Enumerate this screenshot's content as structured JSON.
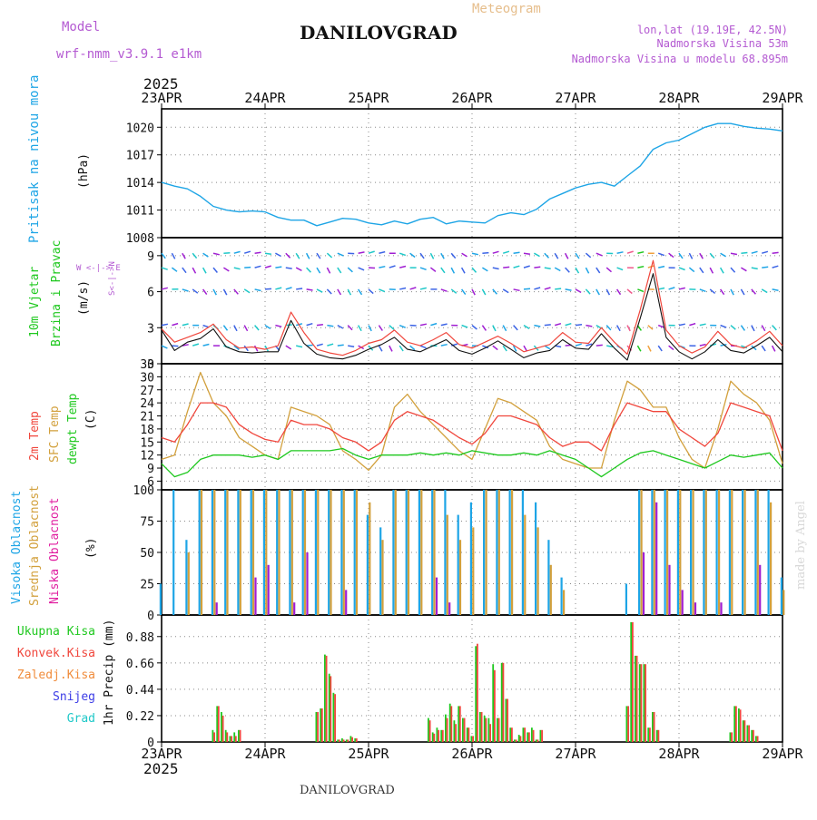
{
  "header": {
    "model_label": "Model",
    "model_name": "wrf-nmm_v3.9.1 e1km",
    "title": "DANILOVGRAD",
    "subtitle": "Meteogram",
    "coords": "lon,lat (19.19E, 42.5N)",
    "elevation": "Nadmorska Visina 53m",
    "model_elevation": "Nadmorska Visina u modelu 68.895m",
    "year_top": "2025",
    "year_bottom": "2025",
    "footer_label": "DANILOVGRAD",
    "credit": "made by Angel"
  },
  "colors": {
    "pressure": "#1ea5e6",
    "temp2m": "#f0463c",
    "sfc_temp": "#d2a03c",
    "dewpt": "#1ec81e",
    "high_cloud": "#1ea5e6",
    "mid_cloud": "#d2a03c",
    "low_cloud": "#a01ed2",
    "total_precip": "#1ec81e",
    "conv_precip": "#f0463c",
    "grid_precip": "#f08c3c",
    "snow": "#3c3ce6",
    "graupel": "#1ec8c8",
    "model_label": "#b45ad2",
    "subtitle": "#e6be8c"
  },
  "x_axis": {
    "days": [
      "23APR",
      "24APR",
      "25APR",
      "26APR",
      "27APR",
      "28APR",
      "29APR"
    ]
  },
  "legends": {
    "pressure_label": "Pritisak na nivou mora",
    "pressure_unit": "(hPa)",
    "wind_label_1": "10m Vjetar",
    "wind_label_2": "Brzina i Pravac",
    "wind_unit": "(m/s)",
    "compass": "W <-|-> E",
    "compass_v": "S<-|->N",
    "temp_2m": "2m Temp",
    "temp_sfc": "SFC Temp",
    "temp_dew": "dewpt Temp",
    "temp_unit": "(C)",
    "cloud_high": "Visoka Oblacnost",
    "cloud_mid": "Srednja Oblacnost",
    "cloud_low": "Niska Oblacnost",
    "cloud_unit": "(%)",
    "precip_total": "Ukupna Kisa",
    "precip_conv": "Konvek.Kisa",
    "precip_grid": "Zaledj.Kisa",
    "precip_snow": "Snijeg",
    "precip_graupel": "Grad",
    "precip_unit": "1hr Precip (mm)"
  },
  "chart_data": [
    {
      "type": "line",
      "panel": "pressure",
      "x_hours": [
        0,
        3,
        6,
        9,
        12,
        15,
        18,
        21,
        24,
        27,
        30,
        33,
        36,
        39,
        42,
        45,
        48,
        51,
        54,
        57,
        60,
        63,
        66,
        69,
        72,
        75,
        78,
        81,
        84,
        87,
        90,
        93,
        96,
        99,
        102,
        105,
        108,
        111,
        114,
        117,
        120,
        123,
        126,
        129,
        132,
        135,
        138,
        141,
        144
      ],
      "series": [
        {
          "values": [
            1014,
            1013.6,
            1013.3,
            1012.5,
            1011.4,
            1011,
            1010.8,
            1010.9,
            1010.8,
            1010.2,
            1009.9,
            1009.9,
            1009.3,
            1009.7,
            1010.1,
            1010,
            1009.6,
            1009.4,
            1009.8,
            1009.5,
            1010,
            1010.2,
            1009.5,
            1009.8,
            1009.7,
            1009.6,
            1010.4,
            1010.7,
            1010.5,
            1011.1,
            1012.2,
            1012.8,
            1013.4,
            1013.8,
            1014,
            1013.6,
            1014.7,
            1015.8,
            1017.6,
            1018.3,
            1018.6,
            1019.3,
            1020,
            1020.4,
            1020.4,
            1020.1,
            1019.9,
            1019.8,
            1019.6
          ]
        }
      ],
      "ylim": [
        1008,
        1022
      ],
      "yticks": [
        1008,
        1011,
        1014,
        1017,
        1020
      ]
    },
    {
      "type": "line",
      "panel": "wind",
      "x_hours": [
        0,
        3,
        6,
        9,
        12,
        15,
        18,
        21,
        24,
        27,
        30,
        33,
        36,
        39,
        42,
        45,
        48,
        51,
        54,
        57,
        60,
        63,
        66,
        69,
        72,
        75,
        78,
        81,
        84,
        87,
        90,
        93,
        96,
        99,
        102,
        105,
        108,
        111,
        114,
        117,
        120,
        123,
        126,
        129,
        132,
        135,
        138,
        141,
        144
      ],
      "series": [
        {
          "name": "speed",
          "values": [
            2.8,
            1.1,
            1.8,
            2.1,
            2.9,
            1.4,
            1.0,
            0.9,
            1.0,
            1.0,
            3.6,
            1.7,
            0.8,
            0.5,
            0.4,
            0.7,
            1.2,
            1.6,
            2.2,
            1.2,
            1.0,
            1.5,
            2.0,
            1.1,
            0.8,
            1.3,
            1.9,
            1.2,
            0.5,
            0.9,
            1.1,
            2.0,
            1.3,
            1.2,
            2.5,
            1.3,
            0.3,
            3.8,
            7.5,
            2.2,
            1.0,
            0.4,
            1.0,
            2.0,
            1.1,
            0.9,
            1.5,
            2.2,
            1.0
          ]
        },
        {
          "name": "gust",
          "values": [
            2.9,
            1.8,
            2.2,
            2.6,
            3.3,
            2.0,
            1.3,
            1.4,
            1.2,
            1.5,
            4.3,
            2.6,
            1.2,
            0.9,
            0.7,
            1.1,
            1.7,
            2.0,
            2.8,
            1.8,
            1.5,
            2.0,
            2.6,
            1.6,
            1.3,
            1.8,
            2.3,
            1.7,
            1.0,
            1.3,
            1.6,
            2.6,
            1.8,
            1.7,
            3.0,
            1.8,
            0.8,
            4.5,
            8.6,
            2.8,
            1.5,
            0.9,
            1.4,
            2.7,
            1.6,
            1.3,
            1.9,
            2.7,
            1.5
          ]
        }
      ],
      "ylim": [
        0,
        10.5
      ],
      "yticks": [
        0,
        3,
        6,
        9
      ]
    },
    {
      "type": "line",
      "panel": "temperature",
      "x_hours": [
        0,
        3,
        6,
        9,
        12,
        15,
        18,
        21,
        24,
        27,
        30,
        33,
        36,
        39,
        42,
        45,
        48,
        51,
        54,
        57,
        60,
        63,
        66,
        69,
        72,
        75,
        78,
        81,
        84,
        87,
        90,
        93,
        96,
        99,
        102,
        105,
        108,
        111,
        114,
        117,
        120,
        123,
        126,
        129,
        132,
        135,
        138,
        141,
        144
      ],
      "series": [
        {
          "name": "2m Temp",
          "values": [
            16,
            15,
            19,
            24,
            24,
            23,
            19,
            17,
            15.6,
            15,
            20,
            19,
            19,
            18,
            16,
            15,
            13,
            15,
            20,
            22,
            21,
            20,
            18,
            16,
            14.5,
            17,
            21,
            21,
            20,
            19,
            16,
            14,
            15,
            15,
            13,
            19,
            24,
            23,
            22,
            22,
            18,
            16,
            14,
            17,
            24,
            23,
            22,
            21,
            13
          ]
        },
        {
          "name": "SFC Temp",
          "values": [
            11,
            12,
            22,
            31,
            24,
            21,
            16,
            14,
            12,
            11,
            23,
            22,
            21,
            19,
            13,
            11,
            8.5,
            12,
            23,
            26,
            22,
            19,
            16,
            13,
            11,
            18,
            25,
            24,
            22,
            20,
            14,
            11,
            10,
            9,
            9,
            20,
            29,
            27,
            23,
            23,
            16,
            11,
            9,
            18,
            29,
            26,
            24,
            20,
            10
          ]
        },
        {
          "name": "dewpt Temp",
          "values": [
            10,
            7,
            8,
            11,
            12,
            12,
            12,
            11.5,
            12,
            11,
            13,
            13,
            13,
            13,
            13.5,
            12,
            11,
            12,
            12,
            12,
            12.5,
            12,
            12.5,
            12,
            13,
            12.5,
            12,
            12,
            12.5,
            12,
            13,
            12,
            11,
            9,
            7,
            9,
            11,
            12.5,
            13,
            12,
            11,
            10,
            9,
            10.5,
            12,
            11.5,
            12,
            12.5,
            9
          ]
        }
      ],
      "ylim": [
        4,
        33
      ],
      "yticks": [
        6,
        9,
        12,
        15,
        18,
        21,
        24,
        27,
        30,
        33
      ]
    },
    {
      "type": "bar",
      "panel": "cloud",
      "x_hours": [
        0,
        3,
        6,
        9,
        12,
        15,
        18,
        21,
        24,
        27,
        30,
        33,
        36,
        39,
        42,
        45,
        48,
        51,
        54,
        57,
        60,
        63,
        66,
        69,
        72,
        75,
        78,
        81,
        84,
        87,
        90,
        93,
        96,
        99,
        102,
        105,
        108,
        111,
        114,
        117,
        120,
        123,
        126,
        129,
        132,
        135,
        138,
        141,
        144
      ],
      "series": [
        {
          "name": "Visoka Oblacnost",
          "values": [
            25,
            100,
            60,
            100,
            100,
            100,
            100,
            100,
            100,
            100,
            100,
            100,
            100,
            100,
            100,
            100,
            80,
            70,
            100,
            100,
            100,
            100,
            100,
            80,
            90,
            100,
            100,
            100,
            100,
            90,
            60,
            30,
            0,
            0,
            0,
            0,
            25,
            100,
            100,
            100,
            100,
            100,
            100,
            100,
            100,
            100,
            100,
            100,
            30
          ]
        },
        {
          "name": "Srednja Oblacnost",
          "values": [
            0,
            0,
            50,
            100,
            100,
            100,
            100,
            100,
            100,
            100,
            100,
            100,
            100,
            100,
            100,
            100,
            90,
            60,
            100,
            100,
            100,
            100,
            80,
            60,
            70,
            100,
            100,
            100,
            80,
            70,
            40,
            20,
            0,
            0,
            0,
            0,
            0,
            100,
            100,
            100,
            100,
            100,
            100,
            100,
            100,
            100,
            100,
            90,
            20
          ]
        },
        {
          "name": "Niska Oblacnost",
          "values": [
            0,
            0,
            0,
            0,
            10,
            0,
            0,
            30,
            40,
            0,
            10,
            50,
            0,
            0,
            20,
            0,
            0,
            0,
            0,
            0,
            0,
            30,
            10,
            0,
            0,
            0,
            0,
            0,
            0,
            0,
            0,
            0,
            0,
            0,
            0,
            0,
            0,
            50,
            90,
            40,
            20,
            10,
            0,
            10,
            0,
            0,
            40,
            0,
            0
          ]
        }
      ],
      "ylim": [
        0,
        100
      ],
      "yticks": [
        0,
        25,
        50,
        75,
        100
      ]
    },
    {
      "type": "bar",
      "panel": "precipitation",
      "x_hours": [
        12,
        13,
        14,
        15,
        16,
        17,
        18,
        36,
        37,
        38,
        39,
        40,
        41,
        42,
        43,
        44,
        45,
        62,
        63,
        64,
        65,
        66,
        67,
        68,
        69,
        70,
        71,
        72,
        73,
        74,
        75,
        76,
        77,
        78,
        79,
        80,
        81,
        82,
        83,
        84,
        85,
        86,
        87,
        88,
        108,
        109,
        110,
        111,
        112,
        113,
        114,
        115,
        132,
        133,
        134,
        135,
        136,
        137,
        138
      ],
      "series": [
        {
          "name": "Ukupna Kisa",
          "values": [
            0.1,
            0.3,
            0.25,
            0.1,
            0.05,
            0.08,
            0.1,
            0.25,
            0.28,
            0.73,
            0.57,
            0.41,
            0.02,
            0.03,
            0.02,
            0.05,
            0.03,
            0.2,
            0.08,
            0.12,
            0.1,
            0.23,
            0.32,
            0.18,
            0.3,
            0.2,
            0.12,
            0.05,
            0.8,
            0.25,
            0.22,
            0.2,
            0.65,
            0.2,
            0.66,
            0.36,
            0.12,
            0.02,
            0.06,
            0.12,
            0.08,
            0.12,
            0.02,
            0.1,
            0.3,
            1.0,
            0.72,
            0.65,
            0.65,
            0.12,
            0.25,
            0.1,
            0.08,
            0.3,
            0.28,
            0.18,
            0.14,
            0.1,
            0.05
          ]
        },
        {
          "name": "Konvek.Kisa",
          "values": [
            0.08,
            0.3,
            0.22,
            0.08,
            0.05,
            0.05,
            0.1,
            0.25,
            0.28,
            0.72,
            0.55,
            0.4,
            0.02,
            0.02,
            0.02,
            0.04,
            0.03,
            0.18,
            0.07,
            0.1,
            0.1,
            0.2,
            0.3,
            0.15,
            0.3,
            0.2,
            0.12,
            0.05,
            0.82,
            0.25,
            0.2,
            0.15,
            0.6,
            0.2,
            0.66,
            0.36,
            0.12,
            0.02,
            0.05,
            0.12,
            0.08,
            0.1,
            0.02,
            0.1,
            0.3,
            1.0,
            0.72,
            0.65,
            0.65,
            0.12,
            0.25,
            0.1,
            0.08,
            0.3,
            0.27,
            0.18,
            0.14,
            0.1,
            0.05
          ]
        }
      ],
      "ylim": [
        0,
        1.06
      ],
      "yticks": [
        0,
        0.22,
        0.44,
        0.66,
        0.88
      ]
    }
  ]
}
